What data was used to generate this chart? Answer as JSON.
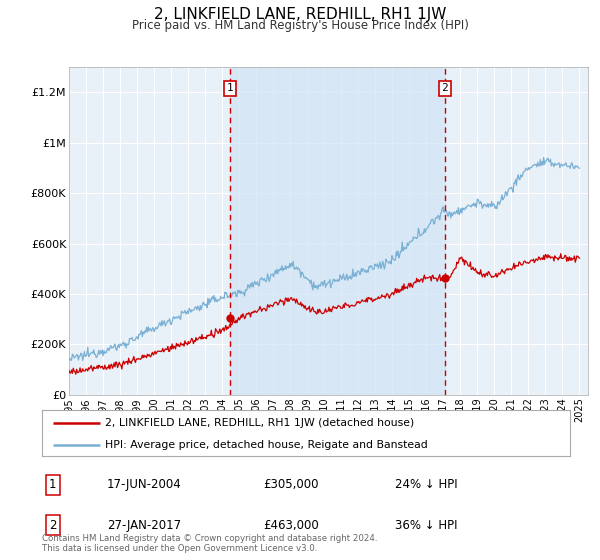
{
  "title": "2, LINKFIELD LANE, REDHILL, RH1 1JW",
  "subtitle": "Price paid vs. HM Land Registry's House Price Index (HPI)",
  "background_color": "#ffffff",
  "plot_bg_color": "#e8f0f8",
  "grid_color": "#ffffff",
  "shade_color": "#d0e4f5",
  "ylim": [
    0,
    1300000
  ],
  "yticks": [
    0,
    200000,
    400000,
    600000,
    800000,
    1000000,
    1200000
  ],
  "ytick_labels": [
    "£0",
    "£200K",
    "£400K",
    "£600K",
    "£800K",
    "£1M",
    "£1.2M"
  ],
  "xlim_start": 1995.0,
  "xlim_end": 2025.5,
  "sale1_date": 2004.46,
  "sale1_price": 305000,
  "sale2_date": 2017.08,
  "sale2_price": 463000,
  "sale1_date_str": "17-JUN-2004",
  "sale1_price_str": "£305,000",
  "sale1_hpi_str": "24% ↓ HPI",
  "sale2_date_str": "27-JAN-2017",
  "sale2_price_str": "£463,000",
  "sale2_hpi_str": "36% ↓ HPI",
  "red_line_color": "#cc0000",
  "blue_line_color": "#7ab0d4",
  "dashed_line_color": "#cc0000",
  "legend_line1": "2, LINKFIELD LANE, REDHILL, RH1 1JW (detached house)",
  "legend_line2": "HPI: Average price, detached house, Reigate and Banstead",
  "footer_text": "Contains HM Land Registry data © Crown copyright and database right 2024.\nThis data is licensed under the Open Government Licence v3.0.",
  "xtick_years": [
    1995,
    1996,
    1997,
    1998,
    1999,
    2000,
    2001,
    2002,
    2003,
    2004,
    2005,
    2006,
    2007,
    2008,
    2009,
    2010,
    2011,
    2012,
    2013,
    2014,
    2015,
    2016,
    2017,
    2018,
    2019,
    2020,
    2021,
    2022,
    2023,
    2024,
    2025
  ]
}
